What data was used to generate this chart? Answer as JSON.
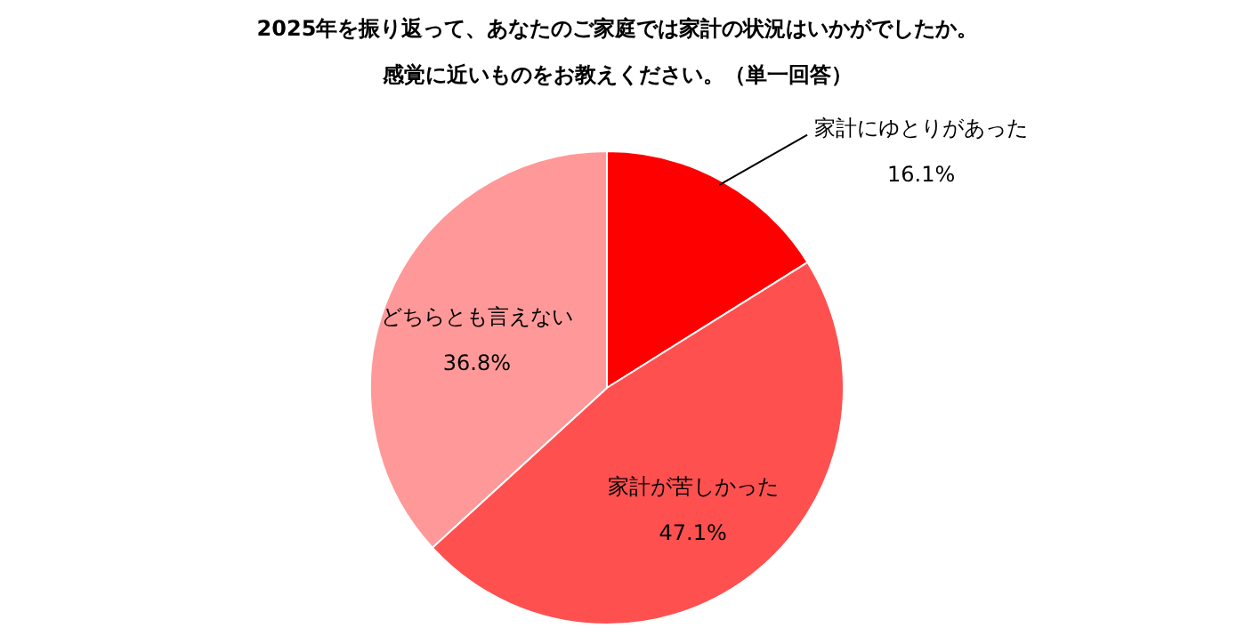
{
  "chart_data": {
    "type": "pie",
    "title": "2025年を振り返って、あなたのご家庭では家計の状況はいかがでしたか。",
    "subtitle": "感覚に近いものをお教えください。（単一回答）",
    "categories": [
      "家計にゆとりがあった",
      "家計が苦しかった",
      "どちらとも言えない"
    ],
    "values": [
      16.1,
      47.1,
      36.8
    ],
    "colors": [
      "#ff0000",
      "#ff5050",
      "#ff9999"
    ],
    "value_labels": [
      "16.1%",
      "47.1%",
      "36.8%"
    ]
  }
}
